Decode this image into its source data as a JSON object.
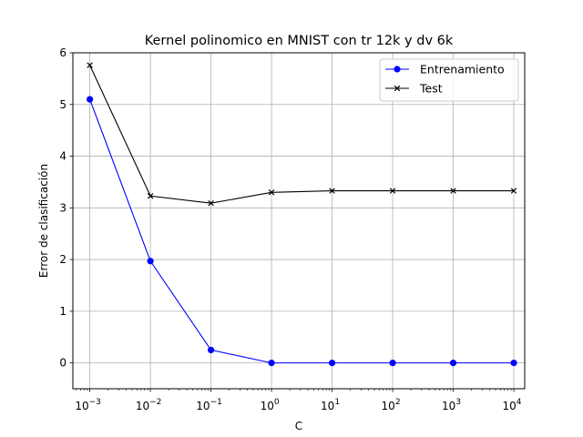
{
  "chart_data": {
    "type": "line",
    "title": "Kernel polinomico en MNIST con tr 12k y dv 6k",
    "xlabel": "C",
    "ylabel": "Error de clasificación",
    "xscale": "log",
    "x_exponents": [
      -3,
      -2,
      -1,
      0,
      1,
      2,
      3,
      4
    ],
    "xlim_exponent": [
      -3.28,
      4.18
    ],
    "ylim": [
      -0.5,
      6
    ],
    "yticks": [
      0,
      1,
      2,
      3,
      4,
      5,
      6
    ],
    "grid": true,
    "legend_position": "upper right",
    "series": [
      {
        "name": "Entrenamiento",
        "color": "#0000ff",
        "marker": "circle",
        "values": [
          5.1,
          1.97,
          0.25,
          0.0,
          0.0,
          0.0,
          0.0,
          0.0
        ]
      },
      {
        "name": "Test",
        "color": "#000000",
        "marker": "x",
        "values": [
          5.76,
          3.23,
          3.09,
          3.3,
          3.33,
          3.33,
          3.33,
          3.33
        ]
      }
    ]
  }
}
